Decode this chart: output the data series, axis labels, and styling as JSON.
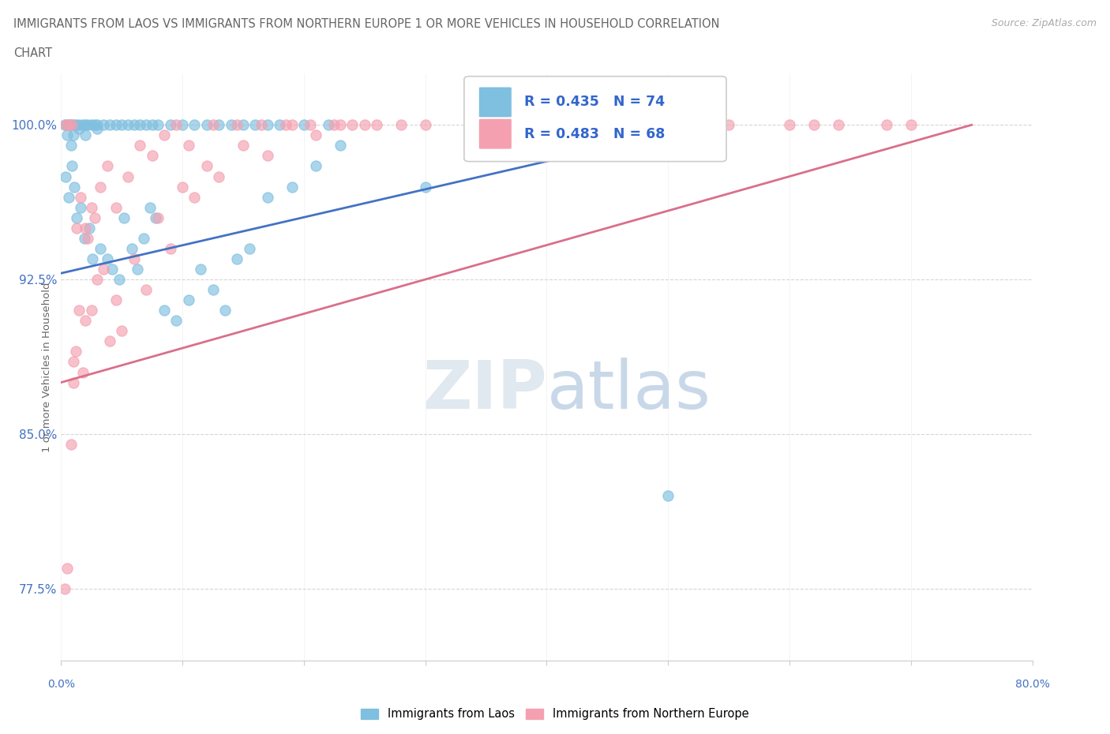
{
  "title_line1": "IMMIGRANTS FROM LAOS VS IMMIGRANTS FROM NORTHERN EUROPE 1 OR MORE VEHICLES IN HOUSEHOLD CORRELATION",
  "title_line2": "CHART",
  "source": "Source: ZipAtlas.com",
  "ylabel": "1 or more Vehicles in Household",
  "yticks": [
    77.5,
    85.0,
    92.5,
    100.0
  ],
  "ytick_labels": [
    "77.5%",
    "85.0%",
    "92.5%",
    "100.0%"
  ],
  "xmin": 0.0,
  "xmax": 80.0,
  "ymin": 74.0,
  "ymax": 102.5,
  "blue_color": "#7fbfdf",
  "pink_color": "#f4a0b0",
  "blue_line_color": "#4472c4",
  "pink_line_color": "#d9708a",
  "legend_r1": "R = 0.435",
  "legend_n1": "N = 74",
  "legend_r2": "R = 0.483",
  "legend_n2": "N = 68",
  "blue_trend_x0": 0.0,
  "blue_trend_y0": 92.8,
  "blue_trend_x1": 53.0,
  "blue_trend_y1": 100.0,
  "pink_trend_x0": 0.0,
  "pink_trend_y0": 87.5,
  "pink_trend_x1": 75.0,
  "pink_trend_y1": 100.0,
  "blue_x": [
    0.3,
    0.5,
    0.5,
    0.7,
    0.8,
    0.8,
    1.0,
    1.0,
    1.2,
    1.5,
    1.5,
    1.8,
    2.0,
    2.0,
    2.2,
    2.5,
    2.8,
    3.0,
    3.0,
    3.5,
    4.0,
    4.5,
    5.0,
    5.5,
    6.0,
    6.5,
    7.0,
    7.5,
    8.0,
    9.0,
    10.0,
    11.0,
    12.0,
    13.0,
    14.0,
    15.0,
    16.0,
    17.0,
    18.0,
    20.0,
    22.0,
    0.4,
    0.6,
    0.9,
    1.1,
    1.3,
    1.6,
    1.9,
    2.3,
    2.6,
    3.2,
    3.8,
    4.2,
    4.8,
    5.2,
    5.8,
    6.3,
    6.8,
    7.3,
    7.8,
    8.5,
    9.5,
    10.5,
    11.5,
    12.5,
    13.5,
    14.5,
    15.5,
    17.0,
    19.0,
    21.0,
    23.0,
    30.0,
    50.0
  ],
  "blue_y": [
    100.0,
    100.0,
    99.5,
    100.0,
    100.0,
    99.0,
    100.0,
    99.5,
    100.0,
    100.0,
    99.8,
    100.0,
    100.0,
    99.5,
    100.0,
    100.0,
    100.0,
    100.0,
    99.8,
    100.0,
    100.0,
    100.0,
    100.0,
    100.0,
    100.0,
    100.0,
    100.0,
    100.0,
    100.0,
    100.0,
    100.0,
    100.0,
    100.0,
    100.0,
    100.0,
    100.0,
    100.0,
    100.0,
    100.0,
    100.0,
    100.0,
    97.5,
    96.5,
    98.0,
    97.0,
    95.5,
    96.0,
    94.5,
    95.0,
    93.5,
    94.0,
    93.5,
    93.0,
    92.5,
    95.5,
    94.0,
    93.0,
    94.5,
    96.0,
    95.5,
    91.0,
    90.5,
    91.5,
    93.0,
    92.0,
    91.0,
    93.5,
    94.0,
    96.5,
    97.0,
    98.0,
    99.0,
    97.0,
    82.0
  ],
  "pink_x": [
    0.3,
    0.5,
    0.8,
    1.0,
    1.0,
    1.2,
    1.5,
    1.8,
    2.0,
    2.0,
    2.5,
    2.5,
    3.0,
    3.5,
    4.0,
    4.5,
    5.0,
    6.0,
    7.0,
    8.0,
    9.0,
    10.0,
    11.0,
    12.0,
    13.0,
    15.0,
    17.0,
    19.0,
    21.0,
    23.0,
    25.0,
    0.4,
    0.6,
    0.9,
    1.3,
    1.6,
    2.2,
    2.8,
    3.2,
    3.8,
    4.5,
    5.5,
    6.5,
    7.5,
    8.5,
    9.5,
    10.5,
    12.5,
    14.5,
    16.5,
    18.5,
    20.5,
    22.5,
    24.0,
    26.0,
    28.0,
    30.0,
    35.0,
    40.0,
    45.0,
    48.0,
    50.0,
    55.0,
    60.0,
    62.0,
    64.0,
    68.0,
    70.0
  ],
  "pink_y": [
    77.5,
    78.5,
    84.5,
    87.5,
    88.5,
    89.0,
    91.0,
    88.0,
    90.5,
    95.0,
    91.0,
    96.0,
    92.5,
    93.0,
    89.5,
    91.5,
    90.0,
    93.5,
    92.0,
    95.5,
    94.0,
    97.0,
    96.5,
    98.0,
    97.5,
    99.0,
    98.5,
    100.0,
    99.5,
    100.0,
    100.0,
    100.0,
    100.0,
    100.0,
    95.0,
    96.5,
    94.5,
    95.5,
    97.0,
    98.0,
    96.0,
    97.5,
    99.0,
    98.5,
    99.5,
    100.0,
    99.0,
    100.0,
    100.0,
    100.0,
    100.0,
    100.0,
    100.0,
    100.0,
    100.0,
    100.0,
    100.0,
    100.0,
    100.0,
    100.0,
    100.0,
    100.0,
    100.0,
    100.0,
    100.0,
    100.0,
    100.0,
    100.0
  ]
}
